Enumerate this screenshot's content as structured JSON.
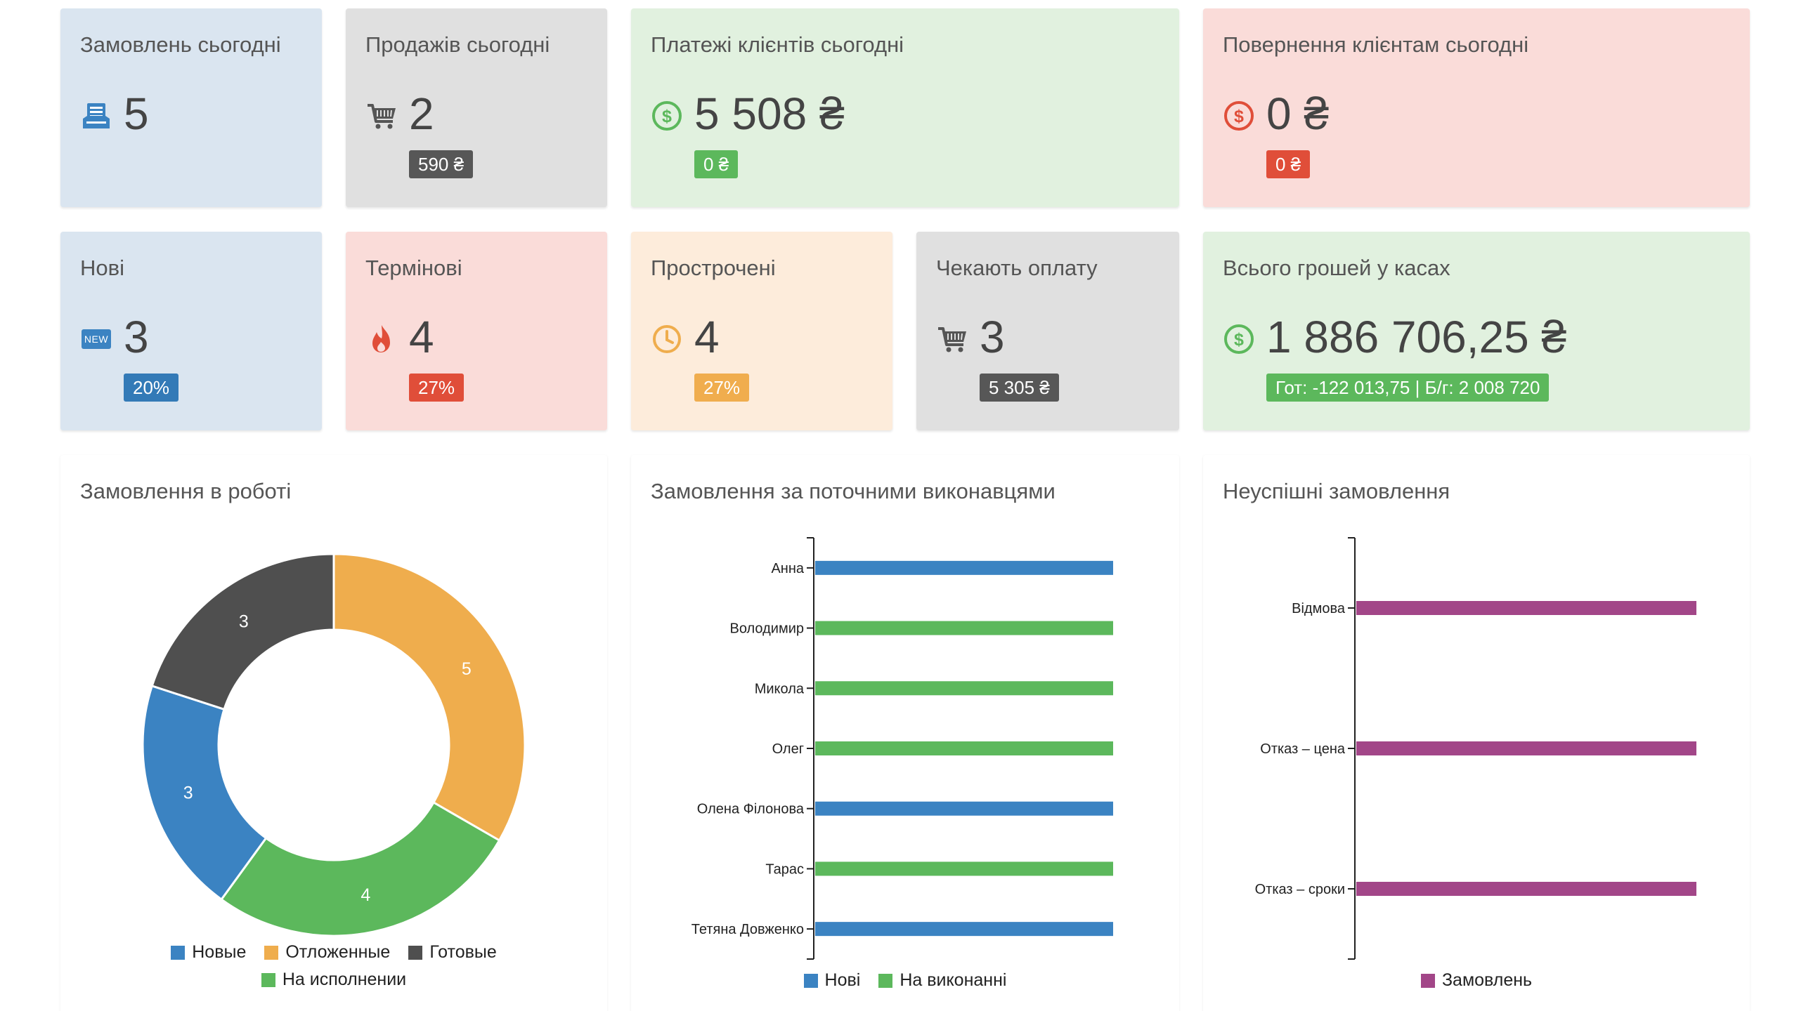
{
  "stats": {
    "orders_today": {
      "title": "Замовлень сьогодні",
      "value": "5",
      "icon": "inbox-icon"
    },
    "sales_today": {
      "title": "Продажів сьогодні",
      "value": "2",
      "badge": "590 ₴",
      "icon": "cart-icon"
    },
    "payments_today": {
      "title": "Платежі клієнтів сьогодні",
      "value": "5 508 ₴",
      "badge": "0 ₴",
      "icon": "dollar-circle-icon"
    },
    "refunds_today": {
      "title": "Повернення клієнтам сьогодні",
      "value": "0 ₴",
      "badge": "0 ₴",
      "icon": "dollar-circle-icon"
    },
    "new": {
      "title": "Нові",
      "value": "3",
      "badge": "20%",
      "icon_text": "NEW",
      "icon": "new-icon"
    },
    "urgent": {
      "title": "Термінові",
      "value": "4",
      "badge": "27%",
      "icon": "fire-icon"
    },
    "overdue": {
      "title": "Прострочені",
      "value": "4",
      "badge": "27%",
      "icon": "clock-icon"
    },
    "awaiting_payment": {
      "title": "Чекають оплату",
      "value": "3",
      "badge": "5 305 ₴",
      "icon": "cart-icon"
    },
    "cash_total": {
      "title": "Всього грошей у касах",
      "value": "1 886 706,25 ₴",
      "badge": "Гот: -122 013,75 | Б/г: 2 008 720",
      "icon": "dollar-circle-icon"
    }
  },
  "colors": {
    "blue": "#3b83c2",
    "orange": "#efad4d",
    "dark": "#4f4f4f",
    "green": "#5cb85c",
    "purple": "#a24688"
  },
  "charts": {
    "orders_in_work": {
      "title": "Замовлення в роботі"
    },
    "by_executors": {
      "title": "Замовлення за поточними виконавцями"
    },
    "failed_orders": {
      "title": "Неуспішні замовлення"
    }
  },
  "chart_data": [
    {
      "type": "pie",
      "title": "Замовлення в роботі",
      "slices": [
        {
          "name": "Отложенные",
          "value": 5,
          "color": "#efad4d"
        },
        {
          "name": "На исполнении",
          "value": 4,
          "color": "#5cb85c"
        },
        {
          "name": "Новые",
          "value": 3,
          "color": "#3b83c2"
        },
        {
          "name": "Готовые",
          "value": 3,
          "color": "#4f4f4f"
        }
      ],
      "legend": [
        {
          "name": "Новые",
          "color": "#3b83c2"
        },
        {
          "name": "Отложенные",
          "color": "#efad4d"
        },
        {
          "name": "Готовые",
          "color": "#4f4f4f"
        },
        {
          "name": "На исполнении",
          "color": "#5cb85c"
        }
      ],
      "legend_position": "bottom"
    },
    {
      "type": "bar",
      "title": "Замовлення за поточними виконавцями",
      "orientation": "horizontal",
      "categories": [
        "Анна",
        "Володимир",
        "Микола",
        "Олег",
        "Олена Філонова",
        "Тарас",
        "Тетяна Довженко"
      ],
      "series": [
        {
          "name": "Нові",
          "color": "#3b83c2",
          "values": [
            1,
            0,
            0,
            0,
            1,
            0,
            1
          ]
        },
        {
          "name": "На виконанні",
          "color": "#5cb85c",
          "values": [
            0,
            1,
            1,
            1,
            0,
            1,
            0
          ]
        }
      ],
      "xlim": [
        0,
        1
      ],
      "legend_position": "bottom"
    },
    {
      "type": "bar",
      "title": "Неуспішні замовлення",
      "orientation": "horizontal",
      "categories": [
        "Відмова",
        "Отказ – цена",
        "Отказ – сроки"
      ],
      "series": [
        {
          "name": "Замовлень",
          "color": "#a24688",
          "values": [
            1,
            1,
            1
          ]
        }
      ],
      "xlim": [
        0,
        1
      ],
      "legend_position": "bottom"
    }
  ]
}
